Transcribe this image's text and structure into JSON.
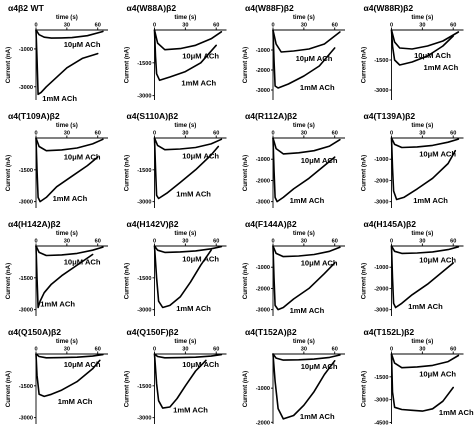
{
  "chart_data": [
    {
      "type": "line",
      "title": "α4β2 WT",
      "xlabel": "time (s)",
      "ylabel": "Current (nA)",
      "x_ticks": [
        0,
        30,
        60
      ],
      "y_ticks": [
        -1000,
        -3000
      ],
      "ylim": [
        -3700,
        0
      ],
      "series": [
        {
          "name": "10μM ACh",
          "x": [
            0,
            3,
            8,
            15,
            25,
            35,
            50,
            65
          ],
          "y": [
            0,
            -250,
            -380,
            -430,
            -420,
            -400,
            -300,
            -80
          ]
        },
        {
          "name": "1mM ACh",
          "x": [
            0,
            1,
            2,
            5,
            10,
            20,
            30,
            45,
            60
          ],
          "y": [
            0,
            -1500,
            -3400,
            -3300,
            -3000,
            -2500,
            -2000,
            -1500,
            -1250
          ]
        }
      ]
    },
    {
      "type": "line",
      "title": "α4(W88A)β2",
      "xlabel": "time (s)",
      "ylabel": "Current (nA)",
      "x_ticks": [
        0,
        30,
        60
      ],
      "y_ticks": [
        -1500,
        -3000
      ],
      "ylim": [
        -3200,
        0
      ],
      "series": [
        {
          "name": "10μM ACh",
          "x": [
            0,
            3,
            10,
            25,
            40,
            55,
            65
          ],
          "y": [
            0,
            -600,
            -900,
            -850,
            -700,
            -400,
            -80
          ]
        },
        {
          "name": "1mM ACh",
          "x": [
            0,
            1,
            2,
            5,
            15,
            30,
            45,
            60
          ],
          "y": [
            0,
            -1200,
            -2000,
            -2300,
            -2150,
            -1900,
            -1500,
            -700
          ]
        }
      ]
    },
    {
      "type": "line",
      "title": "α4(W88F)β2",
      "xlabel": "time (s)",
      "ylabel": "Current (nA)",
      "x_ticks": [
        0,
        30,
        60
      ],
      "y_ticks": [
        -1000,
        -2000,
        -3000
      ],
      "ylim": [
        -3500,
        0
      ],
      "series": [
        {
          "name": "10μM ACh",
          "x": [
            0,
            3,
            8,
            20,
            35,
            50,
            65
          ],
          "y": [
            0,
            -700,
            -1100,
            -1050,
            -950,
            -700,
            -100
          ]
        },
        {
          "name": "1mM ACh",
          "x": [
            0,
            1,
            2,
            5,
            15,
            30,
            45,
            60
          ],
          "y": [
            0,
            -1500,
            -2800,
            -2900,
            -2700,
            -2300,
            -1800,
            -900
          ]
        }
      ]
    },
    {
      "type": "line",
      "title": "α4(W88R)β2",
      "xlabel": "time (s)",
      "ylabel": "Current (nA)",
      "x_ticks": [
        0,
        30,
        60
      ],
      "y_ticks": [
        -1500,
        -3000
      ],
      "ylim": [
        -3500,
        0
      ],
      "series": [
        {
          "name": "10μM ACh",
          "x": [
            0,
            3,
            8,
            20,
            35,
            50,
            65
          ],
          "y": [
            0,
            -600,
            -900,
            -950,
            -800,
            -550,
            -100
          ]
        },
        {
          "name": "1mM ACh",
          "x": [
            0,
            1,
            3,
            8,
            20,
            35,
            50,
            60
          ],
          "y": [
            0,
            -800,
            -1500,
            -1750,
            -1600,
            -1300,
            -800,
            -300
          ]
        }
      ]
    },
    {
      "type": "line",
      "title": "α4(T109A)β2",
      "xlabel": "time (s)",
      "ylabel": "Current (nA)",
      "x_ticks": [
        0,
        30,
        60
      ],
      "y_ticks": [
        -1500,
        -3000
      ],
      "ylim": [
        -3300,
        0
      ],
      "series": [
        {
          "name": "10μM ACh",
          "x": [
            0,
            3,
            10,
            25,
            40,
            55,
            65
          ],
          "y": [
            0,
            -400,
            -600,
            -560,
            -470,
            -280,
            -60
          ]
        },
        {
          "name": "1mM ACh",
          "x": [
            0,
            1,
            2,
            4,
            10,
            20,
            35,
            50,
            60
          ],
          "y": [
            0,
            -1500,
            -2800,
            -3000,
            -2800,
            -2300,
            -1800,
            -1300,
            -900
          ]
        }
      ]
    },
    {
      "type": "line",
      "title": "α4(S110A)β2",
      "xlabel": "time (s)",
      "ylabel": "Current (nA)",
      "x_ticks": [
        0,
        30,
        60
      ],
      "y_ticks": [
        -1500,
        -3000
      ],
      "ylim": [
        -3300,
        0
      ],
      "series": [
        {
          "name": "10μM ACh",
          "x": [
            0,
            3,
            10,
            25,
            40,
            55,
            65
          ],
          "y": [
            0,
            -350,
            -550,
            -520,
            -450,
            -280,
            -60
          ]
        },
        {
          "name": "1mM ACh",
          "x": [
            0,
            1,
            2,
            4,
            12,
            25,
            40,
            55,
            62
          ],
          "y": [
            0,
            -1400,
            -2700,
            -2850,
            -2600,
            -2100,
            -1500,
            -800,
            -400
          ]
        }
      ]
    },
    {
      "type": "line",
      "title": "α4(R112A)β2",
      "xlabel": "time (s)",
      "ylabel": "Current (nA)",
      "x_ticks": [
        0,
        30,
        60
      ],
      "y_ticks": [
        -1000,
        -2000,
        -3000
      ],
      "ylim": [
        -3300,
        0
      ],
      "series": [
        {
          "name": "10μM ACh",
          "x": [
            0,
            3,
            10,
            25,
            40,
            55,
            65
          ],
          "y": [
            0,
            -500,
            -750,
            -700,
            -600,
            -380,
            -80
          ]
        },
        {
          "name": "1mM ACh",
          "x": [
            0,
            1,
            2,
            4,
            10,
            20,
            35,
            50,
            60
          ],
          "y": [
            0,
            -1500,
            -2800,
            -3000,
            -2800,
            -2400,
            -1900,
            -1300,
            -900
          ]
        }
      ]
    },
    {
      "type": "line",
      "title": "α4(T139A)β2",
      "xlabel": "time (s)",
      "ylabel": "Current (nA)",
      "x_ticks": [
        0,
        30,
        60
      ],
      "y_ticks": [
        -1000,
        -2000,
        -3000
      ],
      "ylim": [
        -3300,
        0
      ],
      "series": [
        {
          "name": "10μM ACh",
          "x": [
            0,
            3,
            10,
            25,
            40,
            55,
            65
          ],
          "y": [
            0,
            -300,
            -450,
            -420,
            -350,
            -200,
            -50
          ]
        },
        {
          "name": "1mM ACh",
          "x": [
            0,
            1,
            2,
            5,
            12,
            25,
            40,
            55,
            62
          ],
          "y": [
            0,
            -1400,
            -2500,
            -2900,
            -2800,
            -2400,
            -1900,
            -1200,
            -600
          ]
        }
      ]
    },
    {
      "type": "line",
      "title": "α4(H142A)β2",
      "xlabel": "time (s)",
      "ylabel": "Current (nA)",
      "x_ticks": [
        0,
        30,
        60
      ],
      "y_ticks": [
        -1500,
        -3000
      ],
      "ylim": [
        -3300,
        0
      ],
      "series": [
        {
          "name": "10μM ACh",
          "x": [
            0,
            3,
            10,
            25,
            40,
            55,
            65
          ],
          "y": [
            0,
            -300,
            -450,
            -420,
            -350,
            -200,
            -50
          ]
        },
        {
          "name": "1mM ACh",
          "x": [
            0,
            1,
            2,
            4,
            8,
            15,
            25,
            40,
            55
          ],
          "y": [
            0,
            -1500,
            -2900,
            -2600,
            -2200,
            -1800,
            -1400,
            -900,
            -400
          ]
        }
      ]
    },
    {
      "type": "line",
      "title": "α4(H142V)β2",
      "xlabel": "time (s)",
      "ylabel": "Current (nA)",
      "x_ticks": [
        0,
        30,
        60
      ],
      "y_ticks": [
        -1500,
        -3000
      ],
      "ylim": [
        -3300,
        0
      ],
      "series": [
        {
          "name": "10μM ACh",
          "x": [
            0,
            3,
            10,
            25,
            40,
            55,
            65
          ],
          "y": [
            0,
            -200,
            -300,
            -280,
            -230,
            -130,
            -30
          ]
        },
        {
          "name": "1mM ACh",
          "x": [
            0,
            2,
            4,
            8,
            15,
            25,
            35,
            45,
            55
          ],
          "y": [
            0,
            -1500,
            -2600,
            -2900,
            -2800,
            -2400,
            -1700,
            -900,
            -200
          ]
        }
      ]
    },
    {
      "type": "line",
      "title": "α4(F144A)β2",
      "xlabel": "time (s)",
      "ylabel": "Current (nA)",
      "x_ticks": [
        0,
        30,
        60
      ],
      "y_ticks": [
        -1000,
        -2000,
        -3000
      ],
      "ylim": [
        -3300,
        0
      ],
      "series": [
        {
          "name": "10μM ACh",
          "x": [
            0,
            3,
            10,
            25,
            40,
            55,
            65
          ],
          "y": [
            0,
            -350,
            -500,
            -470,
            -400,
            -250,
            -60
          ]
        },
        {
          "name": "1mM ACh",
          "x": [
            0,
            1,
            2,
            5,
            10,
            20,
            35,
            50,
            60
          ],
          "y": [
            0,
            -1500,
            -2800,
            -3000,
            -2900,
            -2500,
            -2000,
            -1300,
            -800
          ]
        }
      ]
    },
    {
      "type": "line",
      "title": "α4(H145A)β2",
      "xlabel": "time (s)",
      "ylabel": "Current (nA)",
      "x_ticks": [
        0,
        30,
        60
      ],
      "y_ticks": [
        -1000,
        -2000,
        -3000
      ],
      "ylim": [
        -3300,
        0
      ],
      "series": [
        {
          "name": "10μM ACh",
          "x": [
            0,
            3,
            10,
            25,
            40,
            55,
            65
          ],
          "y": [
            0,
            -250,
            -350,
            -330,
            -280,
            -170,
            -40
          ]
        },
        {
          "name": "1mM ACh",
          "x": [
            0,
            1,
            2,
            4,
            10,
            20,
            35,
            50,
            60
          ],
          "y": [
            0,
            -1500,
            -2700,
            -2900,
            -2700,
            -2300,
            -1800,
            -1200,
            -800
          ]
        }
      ]
    },
    {
      "type": "line",
      "title": "α4(Q150A)β2",
      "xlabel": "time (s)",
      "ylabel": "Current (nA)",
      "x_ticks": [
        0,
        30,
        60
      ],
      "y_ticks": [
        -1500,
        -3000
      ],
      "ylim": [
        -3300,
        0
      ],
      "series": [
        {
          "name": "10μM ACh",
          "x": [
            0,
            3,
            10,
            25,
            40,
            55,
            65
          ],
          "y": [
            0,
            -120,
            -180,
            -170,
            -150,
            -100,
            -30
          ]
        },
        {
          "name": "1mM ACh",
          "x": [
            0,
            1,
            3,
            8,
            15,
            25,
            40,
            55,
            62
          ],
          "y": [
            0,
            -1000,
            -1900,
            -2000,
            -1900,
            -1700,
            -1300,
            -700,
            -300
          ]
        }
      ]
    },
    {
      "type": "line",
      "title": "α4(Q150F)β2",
      "xlabel": "time (s)",
      "ylabel": "Current (nA)",
      "x_ticks": [
        0,
        30,
        60
      ],
      "y_ticks": [
        -1500,
        -3000
      ],
      "ylim": [
        -3300,
        0
      ],
      "series": [
        {
          "name": "10μM ACh",
          "x": [
            0,
            3,
            10,
            25,
            40,
            55,
            65
          ],
          "y": [
            0,
            -120,
            -180,
            -170,
            -150,
            -100,
            -30
          ]
        },
        {
          "name": "1mM ACh",
          "x": [
            0,
            2,
            4,
            8,
            15,
            22,
            30,
            40,
            50
          ],
          "y": [
            0,
            -1400,
            -2200,
            -2550,
            -2500,
            -2100,
            -1500,
            -800,
            -300
          ]
        }
      ]
    },
    {
      "type": "line",
      "title": "α4(T152A)β2",
      "xlabel": "time (s)",
      "ylabel": "Current (nA)",
      "x_ticks": [
        30,
        60
      ],
      "y_ticks": [
        -1000,
        -2000
      ],
      "ylim": [
        -2050,
        0
      ],
      "series": [
        {
          "name": "10μM ACh",
          "x": [
            0,
            3,
            10,
            25,
            40,
            55,
            65
          ],
          "y": [
            0,
            -120,
            -180,
            -170,
            -150,
            -100,
            -30
          ]
        },
        {
          "name": "1mM ACh",
          "x": [
            0,
            2,
            5,
            10,
            20,
            30,
            40,
            50,
            60
          ],
          "y": [
            0,
            -800,
            -1600,
            -1900,
            -1800,
            -1500,
            -1100,
            -600,
            -200
          ]
        }
      ]
    },
    {
      "type": "line",
      "title": "α4(T152L)β2",
      "xlabel": "time (s)",
      "ylabel": "Current (nA)",
      "x_ticks": [
        0,
        30,
        60
      ],
      "y_ticks": [
        -1500,
        -3000,
        -4500
      ],
      "ylim": [
        -4600,
        0
      ],
      "series": [
        {
          "name": "10μM ACh",
          "x": [
            0,
            3,
            10,
            25,
            40,
            55,
            65
          ],
          "y": [
            0,
            -600,
            -900,
            -850,
            -750,
            -500,
            -100
          ]
        },
        {
          "name": "1mM ACh",
          "x": [
            0,
            1,
            3,
            10,
            20,
            30,
            40,
            50,
            60
          ],
          "y": [
            0,
            -2500,
            -3500,
            -3650,
            -3700,
            -3750,
            -3600,
            -3100,
            -2200
          ]
        }
      ]
    }
  ]
}
